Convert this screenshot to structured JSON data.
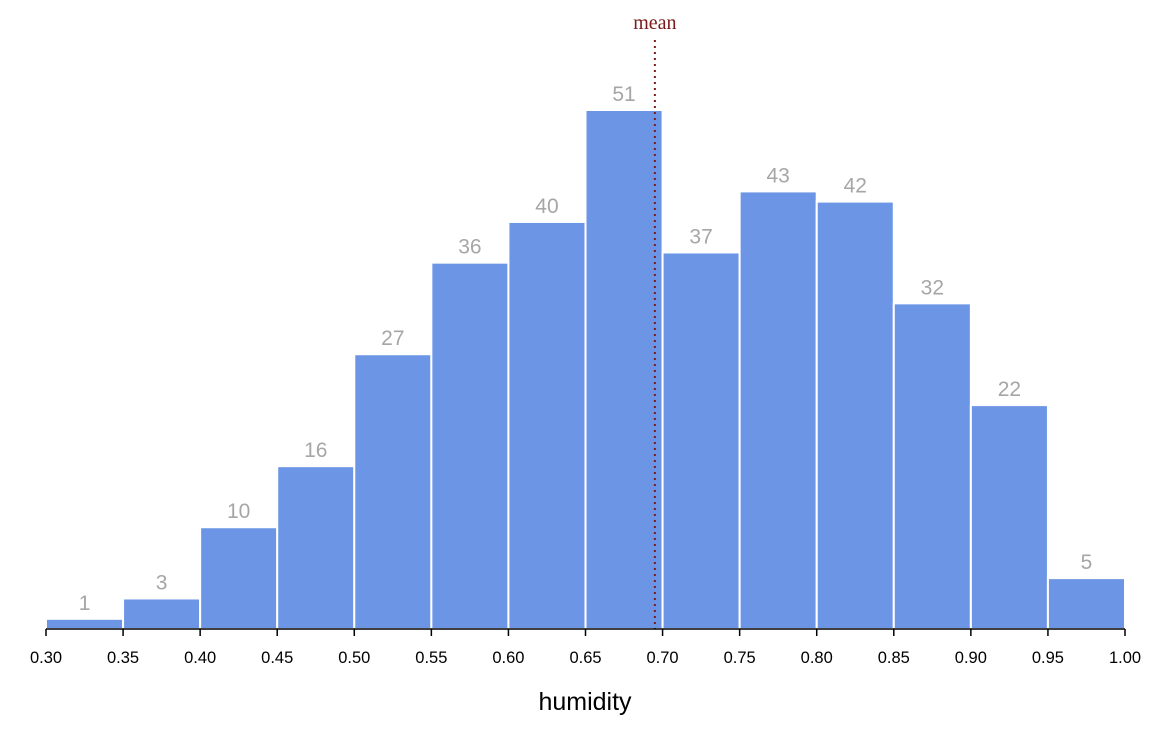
{
  "chart_data": {
    "type": "bar",
    "subtype": "histogram",
    "bins": [
      {
        "x0": 0.3,
        "x1": 0.35,
        "count": 1
      },
      {
        "x0": 0.35,
        "x1": 0.4,
        "count": 3
      },
      {
        "x0": 0.4,
        "x1": 0.45,
        "count": 10
      },
      {
        "x0": 0.45,
        "x1": 0.5,
        "count": 16
      },
      {
        "x0": 0.5,
        "x1": 0.55,
        "count": 27
      },
      {
        "x0": 0.55,
        "x1": 0.6,
        "count": 36
      },
      {
        "x0": 0.6,
        "x1": 0.65,
        "count": 40
      },
      {
        "x0": 0.65,
        "x1": 0.7,
        "count": 51
      },
      {
        "x0": 0.7,
        "x1": 0.75,
        "count": 37
      },
      {
        "x0": 0.75,
        "x1": 0.8,
        "count": 43
      },
      {
        "x0": 0.8,
        "x1": 0.85,
        "count": 42
      },
      {
        "x0": 0.85,
        "x1": 0.9,
        "count": 32
      },
      {
        "x0": 0.9,
        "x1": 0.95,
        "count": 22
      },
      {
        "x0": 0.95,
        "x1": 1.0,
        "count": 5
      }
    ],
    "xlabel": "humidity",
    "ylabel": "",
    "xlim": [
      0.3,
      1.0
    ],
    "ylim": [
      0,
      51
    ],
    "x_ticks": [
      "0.30",
      "0.35",
      "0.40",
      "0.45",
      "0.50",
      "0.55",
      "0.60",
      "0.65",
      "0.70",
      "0.75",
      "0.80",
      "0.85",
      "0.90",
      "0.95",
      "1.00"
    ],
    "mean": {
      "label": "mean",
      "value": 0.695
    },
    "grid": false,
    "colors": {
      "bar": "#6c96e5",
      "bar_outline": "#ffffff",
      "count_label": "#a6a6a6",
      "mean_line": "#7a1a1a",
      "axis": "#000000"
    }
  }
}
